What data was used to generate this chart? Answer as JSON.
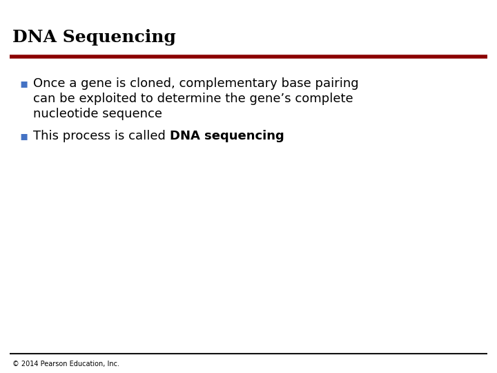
{
  "title": "DNA Sequencing",
  "title_color": "#000000",
  "title_fontsize": 18,
  "title_bold": true,
  "red_line_color": "#8B0000",
  "black_line_color": "#111111",
  "bullet_color": "#4472C4",
  "bullet_char": "▪",
  "bullet1_lines": [
    "Once a gene is cloned, complementary base pairing",
    "can be exploited to determine the gene’s complete",
    "nucleotide sequence"
  ],
  "bullet2_normal": "This process is called ",
  "bullet2_bold": "DNA sequencing",
  "body_fontsize": 13,
  "footer_text": "© 2014 Pearson Education, Inc.",
  "footer_fontsize": 7,
  "background_color": "#ffffff"
}
